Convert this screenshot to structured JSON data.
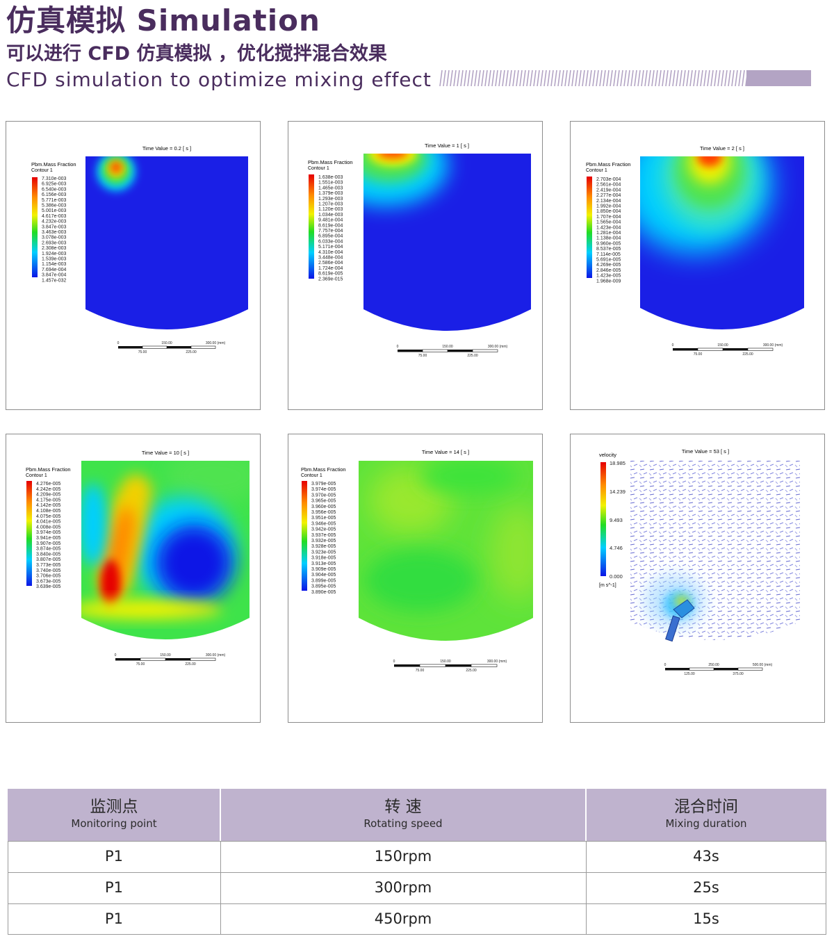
{
  "header": {
    "title": "仿真模拟 Simulation",
    "subtitle_cn": "可以进行 CFD 仿真模拟 ，优化搅拌混合效果",
    "subtitle_en": "CFD simulation to optimize mixing effect",
    "accent_color": "#4a2d5e",
    "deco_color": "#b3a4c4"
  },
  "panels": [
    {
      "time_label": "Time Value = 0.2 [ s ]",
      "legend_title": "Pbm.Mass Fraction",
      "legend_sub": "Contour 1",
      "legend_values": [
        "7.310e-003",
        "6.925e-003",
        "6.540e-003",
        "6.156e-003",
        "5.771e-003",
        "5.386e-003",
        "5.001e-003",
        "4.617e-003",
        "4.232e-003",
        "3.847e-003",
        "3.463e-003",
        "3.078e-003",
        "2.693e-003",
        "2.308e-003",
        "1.924e-003",
        "1.539e-003",
        "1.154e-003",
        "7.694e-004",
        "3.847e-004",
        "1.457e-032"
      ],
      "scale": [
        "0",
        "75.00",
        "150.00",
        "225.00",
        "300.00 (mm)"
      ]
    },
    {
      "time_label": "Time Value = 1 [ s ]",
      "legend_title": "Pbm.Mass Fraction",
      "legend_sub": "Contour 1",
      "legend_values": [
        "1.638e-003",
        "1.551e-003",
        "1.465e-003",
        "1.379e-003",
        "1.293e-003",
        "1.207e-003",
        "1.120e-003",
        "1.034e-003",
        "9.481e-004",
        "8.619e-004",
        "7.757e-004",
        "6.895e-004",
        "6.033e-004",
        "5.171e-004",
        "4.310e-004",
        "3.448e-004",
        "2.586e-004",
        "1.724e-004",
        "8.619e-005",
        "2.369e-015"
      ],
      "scale": [
        "0",
        "75.00",
        "150.00",
        "225.00",
        "300.00 (mm)"
      ]
    },
    {
      "time_label": "Time Value = 2 [ s ]",
      "legend_title": "Pbm.Mass Fraction",
      "legend_sub": "Contour 1",
      "legend_values": [
        "2.703e-004",
        "2.561e-004",
        "2.419e-004",
        "2.277e-004",
        "2.134e-004",
        "1.992e-004",
        "1.850e-004",
        "1.707e-004",
        "1.565e-004",
        "1.423e-004",
        "1.281e-004",
        "1.138e-004",
        "9.960e-005",
        "8.537e-005",
        "7.114e-005",
        "5.691e-005",
        "4.269e-005",
        "2.846e-005",
        "1.423e-005",
        "1.968e-009"
      ],
      "scale": [
        "0",
        "75.00",
        "150.00",
        "225.00",
        "300.00 (mm)"
      ]
    },
    {
      "time_label": "Time Value = 10 [ s ]",
      "legend_title": "Pbm.Mass Fraction",
      "legend_sub": "Contour 1",
      "legend_values": [
        "4.276e-005",
        "4.242e-005",
        "4.209e-005",
        "4.175e-005",
        "4.142e-005",
        "4.108e-005",
        "4.075e-005",
        "4.041e-005",
        "4.008e-005",
        "3.974e-005",
        "3.941e-005",
        "3.907e-005",
        "3.874e-005",
        "3.840e-005",
        "3.807e-005",
        "3.773e-005",
        "3.740e-005",
        "3.706e-005",
        "3.673e-005",
        "3.639e-005"
      ],
      "scale": [
        "0",
        "75.00",
        "150.00",
        "225.00",
        "300.00 (mm)"
      ]
    },
    {
      "time_label": "Time Value = 14 [ s ]",
      "legend_title": "Pbm.Mass Fraction",
      "legend_sub": "Contour 1",
      "legend_values": [
        "3.979e-005",
        "3.974e-005",
        "3.970e-005",
        "3.965e-005",
        "3.960e-005",
        "3.956e-005",
        "3.951e-005",
        "3.946e-005",
        "3.942e-005",
        "3.937e-005",
        "3.932e-005",
        "3.928e-005",
        "3.923e-005",
        "3.918e-005",
        "3.913e-005",
        "3.909e-005",
        "3.904e-005",
        "3.899e-005",
        "3.895e-005",
        "3.890e-005"
      ],
      "scale": [
        "0",
        "75.00",
        "150.00",
        "225.00",
        "300.00 (mm)"
      ]
    },
    {
      "time_label": "Time Value = 53 [ s ]",
      "legend_title": "velocity",
      "legend_values": [
        "18.985",
        "14.239",
        "9.493",
        "4.746",
        "0.000"
      ],
      "legend_unit": "[m s^-1]",
      "scale": [
        "0",
        "125.00",
        "250.00",
        "375.00",
        "500.00 (mm)"
      ]
    }
  ],
  "table": {
    "headers": [
      {
        "cn": "监测点",
        "en": "Monitoring point"
      },
      {
        "cn": "转  速",
        "en": "Rotating speed"
      },
      {
        "cn": "混合时间",
        "en": "Mixing duration"
      }
    ],
    "rows": [
      [
        "P1",
        "150rpm",
        "43s"
      ],
      [
        "P1",
        "300rpm",
        "25s"
      ],
      [
        "P1",
        "450rpm",
        "15s"
      ]
    ],
    "header_color": "#bfb3ce"
  }
}
